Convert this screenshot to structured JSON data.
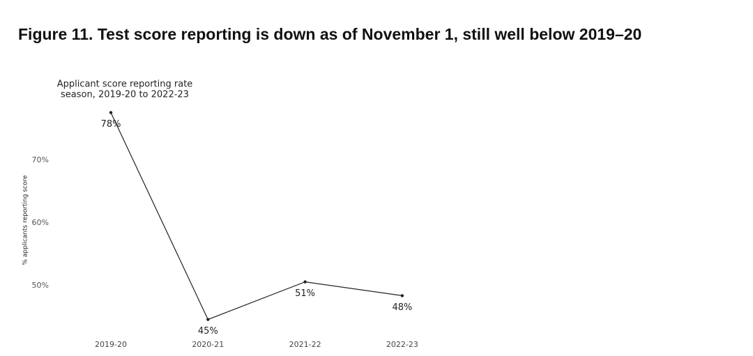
{
  "heading": "Figure 11. Test score reporting is down as of November 1, still well below 2019–20",
  "chart_data": {
    "type": "line",
    "title": [
      "Applicant score reporting rate",
      "season, 2019-20 to 2022-23"
    ],
    "y_label": "% applicants reporting score",
    "categories": [
      "2019-20",
      "2020-21",
      "2021-22",
      "2022-23"
    ],
    "values": [
      77.6,
      44.6,
      50.6,
      48.4
    ],
    "value_labels": [
      "78%",
      "45%",
      "51%",
      "48%"
    ],
    "color": "#222222",
    "ylim": [
      41,
      79
    ],
    "yticks": [
      {
        "value": 50,
        "label": "50%"
      },
      {
        "value": 60,
        "label": "60%"
      },
      {
        "value": 70,
        "label": "70%"
      }
    ],
    "grid": false
  }
}
